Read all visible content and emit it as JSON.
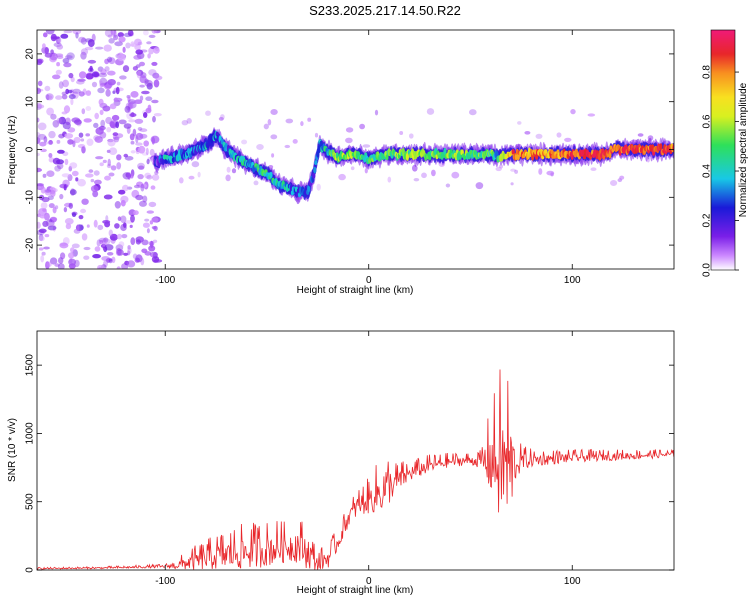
{
  "title": "S233.2025.217.14.50.R22",
  "colors": {
    "snr_line": "#e8262a",
    "spectrogram_low": "#7a1fe8",
    "spectrogram_mid": "#19c7d6",
    "spectrogram_high": "#e8262a"
  },
  "chart_data": [
    {
      "type": "heatmap",
      "name": "spectrogram",
      "xlabel": "Height of straight line (km)",
      "ylabel": "Frequency (Hz)",
      "xlim": [
        -163,
        150
      ],
      "ylim": [
        -25,
        25
      ],
      "xticks": [
        -100,
        0,
        100
      ],
      "yticks": [
        -20,
        -10,
        0,
        10,
        20
      ],
      "colorbar": {
        "label": "Normalized spectral amplitude",
        "range": [
          0,
          0.97
        ],
        "ticks": [
          "0.0",
          "0.2",
          "0.4",
          "0.6",
          "0.8"
        ],
        "colormap": "rainbow (purple→blue→cyan→green→yellow→red→magenta)"
      },
      "ridge_track": {
        "x": [
          -105,
          -100,
          -90,
          -80,
          -75,
          -70,
          -60,
          -50,
          -45,
          -40,
          -35,
          -30,
          -27,
          -24,
          -22,
          -18,
          -15,
          -10,
          -5,
          0,
          5,
          10,
          20,
          40,
          60,
          63,
          70,
          88,
          100,
          118,
          120,
          130,
          150
        ],
        "freq": [
          -3,
          -2,
          -1,
          1,
          3,
          0,
          -3,
          -5,
          -7,
          -8,
          -9,
          -9,
          -5,
          1,
          0,
          -1,
          -1.5,
          -1,
          -1,
          -2,
          -1.5,
          -1,
          -1,
          -1,
          -1,
          -1.5,
          -1,
          -1,
          -1,
          -1,
          0,
          0,
          0
        ],
        "amplitude": [
          0.2,
          0.35,
          0.3,
          0.35,
          0.3,
          0.3,
          0.4,
          0.45,
          0.4,
          0.35,
          0.3,
          0.25,
          0.25,
          0.35,
          0.4,
          0.5,
          0.6,
          0.55,
          0.55,
          0.45,
          0.5,
          0.55,
          0.55,
          0.55,
          0.5,
          0.4,
          0.8,
          0.8,
          0.9,
          0.9,
          0.85,
          0.9,
          0.85
        ]
      },
      "noise_region_x": [
        -163,
        -103
      ]
    },
    {
      "type": "line",
      "name": "snr",
      "xlabel": "Height of straight line (km)",
      "ylabel": "SNR (10 * v/v)",
      "xlim": [
        -163,
        150
      ],
      "ylim": [
        0,
        1750
      ],
      "xticks": [
        -100,
        0,
        100
      ],
      "yticks": [
        0,
        500,
        1000,
        1500
      ],
      "envelope": {
        "x": [
          -163,
          -130,
          -100,
          -95,
          -85,
          -75,
          -65,
          -55,
          -45,
          -40,
          -35,
          -30,
          -25,
          -20,
          -15,
          -10,
          -5,
          0,
          5,
          8,
          12,
          20,
          30,
          40,
          50,
          55,
          58,
          62,
          64,
          66,
          67,
          68,
          70,
          72,
          75,
          80,
          90,
          100,
          120,
          140,
          150
        ],
        "base": [
          10,
          15,
          25,
          30,
          60,
          90,
          110,
          130,
          150,
          160,
          170,
          120,
          40,
          80,
          200,
          380,
          470,
          500,
          550,
          580,
          620,
          700,
          760,
          790,
          800,
          790,
          780,
          760,
          740,
          730,
          720,
          700,
          720,
          760,
          790,
          800,
          810,
          820,
          830,
          840,
          845
        ],
        "amp": [
          10,
          12,
          20,
          60,
          140,
          200,
          250,
          260,
          250,
          220,
          260,
          250,
          120,
          150,
          120,
          130,
          160,
          200,
          300,
          350,
          200,
          120,
          100,
          80,
          70,
          100,
          350,
          650,
          900,
          750,
          950,
          1000,
          700,
          250,
          150,
          100,
          80,
          70,
          60,
          50,
          40
        ]
      }
    }
  ]
}
